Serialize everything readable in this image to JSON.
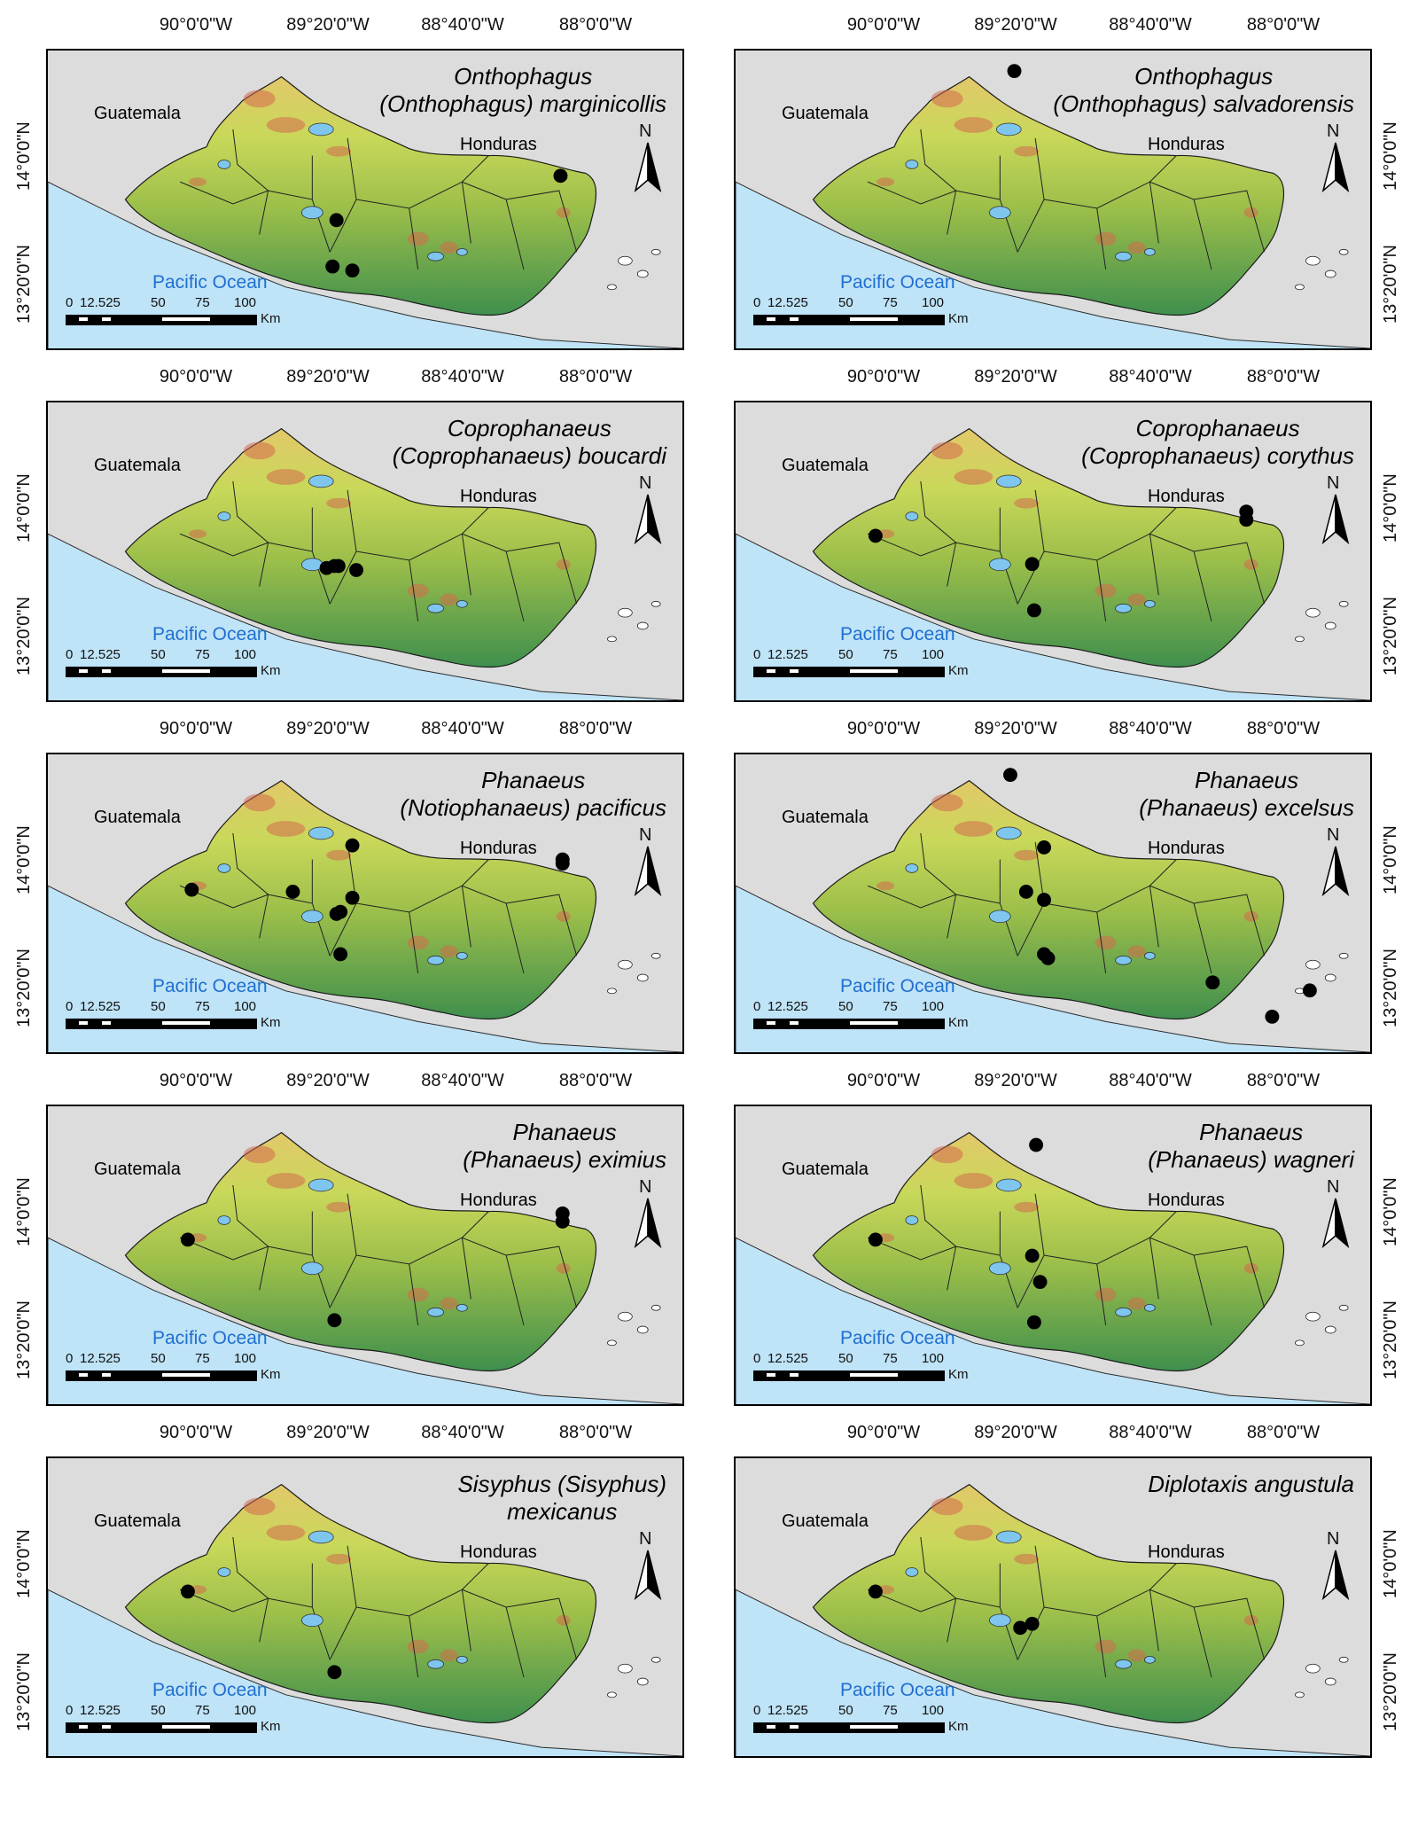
{
  "axis_labels": {
    "lon": [
      "90°0'0\"W",
      "89°20'0\"W",
      "88°40'0\"W",
      "88°0'0\"W"
    ],
    "lat": [
      "14°0'0\"N",
      "13°20'0\"N"
    ]
  },
  "map_labels": {
    "guatemala": "Guatemala",
    "honduras": "Honduras",
    "ocean": "Pacific Ocean",
    "north": "N"
  },
  "scale": {
    "ticks": [
      "0",
      "12.525",
      "50",
      "75",
      "100"
    ],
    "unit": "Km"
  },
  "colors": {
    "ocean": "#bfe3f7",
    "land_low": "#3f8f4d",
    "land_mid": "#c9d85a",
    "land_high": "#d46a4e",
    "background": "#dcdcdc",
    "dots": "#000000"
  },
  "panels": [
    {
      "title_lines": [
        "Onthophagus",
        "(Onthophagus) marginicollis"
      ],
      "points": [
        [
          89.3,
          13.68
        ],
        [
          89.32,
          13.45
        ],
        [
          89.22,
          13.43
        ],
        [
          88.17,
          13.9
        ]
      ]
    },
    {
      "title_lines": [
        "Onthophagus",
        "(Onthophagus) salvadorensis"
      ],
      "points": [
        [
          89.35,
          14.42
        ]
      ]
    },
    {
      "title_lines": [
        "Coprophanaeus",
        "(Coprophanaeus) boucardi"
      ],
      "points": [
        [
          89.35,
          13.7
        ],
        [
          89.31,
          13.71
        ],
        [
          89.29,
          13.71
        ],
        [
          89.2,
          13.69
        ]
      ]
    },
    {
      "title_lines": [
        "Coprophanaeus",
        "(Coprophanaeus) corythus"
      ],
      "points": [
        [
          90.05,
          13.86
        ],
        [
          89.26,
          13.72
        ],
        [
          89.25,
          13.49
        ],
        [
          88.18,
          13.98
        ],
        [
          88.18,
          13.94
        ]
      ]
    },
    {
      "title_lines": [
        "Phanaeus",
        "(Notiophanaeus) pacificus"
      ],
      "points": [
        [
          90.03,
          13.85
        ],
        [
          89.52,
          13.84
        ],
        [
          89.3,
          13.73
        ],
        [
          89.28,
          13.74
        ],
        [
          89.28,
          13.53
        ],
        [
          89.22,
          14.07
        ],
        [
          89.22,
          13.81
        ],
        [
          88.16,
          13.98
        ],
        [
          88.16,
          14.0
        ]
      ]
    },
    {
      "title_lines": [
        "Phanaeus",
        "(Phanaeus) excelsus"
      ],
      "points": [
        [
          89.37,
          14.42
        ],
        [
          89.29,
          13.84
        ],
        [
          89.2,
          14.06
        ],
        [
          89.2,
          13.8
        ],
        [
          89.2,
          13.53
        ],
        [
          89.18,
          13.51
        ],
        [
          88.35,
          13.39
        ],
        [
          88.05,
          13.22
        ],
        [
          87.86,
          13.35
        ]
      ]
    },
    {
      "title_lines": [
        "Phanaeus",
        "(Phanaeus) eximius"
      ],
      "points": [
        [
          90.05,
          13.86
        ],
        [
          89.31,
          13.46
        ],
        [
          88.16,
          13.99
        ],
        [
          88.16,
          13.95
        ]
      ]
    },
    {
      "title_lines": [
        "Phanaeus",
        "(Phanaeus) wagneri"
      ],
      "points": [
        [
          90.05,
          13.86
        ],
        [
          89.24,
          14.33
        ],
        [
          89.26,
          13.78
        ],
        [
          89.22,
          13.65
        ],
        [
          89.25,
          13.45
        ]
      ]
    },
    {
      "title_lines": [
        "Sisyphus (Sisyphus)",
        "mexicanus"
      ],
      "points": [
        [
          90.05,
          13.86
        ],
        [
          89.31,
          13.46
        ]
      ]
    },
    {
      "title_lines": [
        "Diplotaxis angustula"
      ],
      "points": [
        [
          90.05,
          13.86
        ],
        [
          89.32,
          13.68
        ],
        [
          89.26,
          13.7
        ]
      ]
    }
  ]
}
